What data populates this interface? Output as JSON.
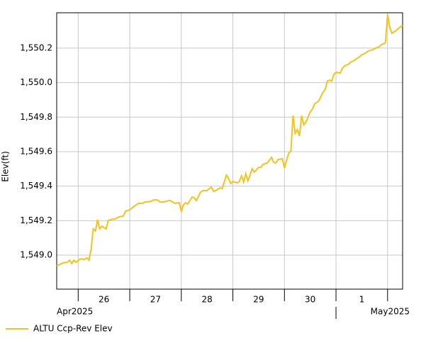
{
  "chart_data": {
    "type": "line",
    "y_label": "Elev(ft)",
    "ylim": [
      1548.803,
      1550.405
    ],
    "yticks": [
      {
        "value": 1549.0,
        "label": "1,549.0"
      },
      {
        "value": 1549.2,
        "label": "1,549.2"
      },
      {
        "value": 1549.4,
        "label": "1,549.4"
      },
      {
        "value": 1549.6,
        "label": "1,549.6"
      },
      {
        "value": 1549.8,
        "label": "1,549.8"
      },
      {
        "value": 1550.0,
        "label": "1,550.0"
      },
      {
        "value": 1550.2,
        "label": "1,550.2"
      }
    ],
    "xlim": [
      "2025-04-25T14:00",
      "2025-05-02T07:00"
    ],
    "xticks": [
      {
        "value": "2025-04-26T00:00",
        "label": "26"
      },
      {
        "value": "2025-04-27T00:00",
        "label": "27"
      },
      {
        "value": "2025-04-28T00:00",
        "label": "28"
      },
      {
        "value": "2025-04-29T00:00",
        "label": "29"
      },
      {
        "value": "2025-04-30T00:00",
        "label": "30"
      },
      {
        "value": "2025-05-01T00:00",
        "label": "1"
      },
      {
        "value": "2025-05-02T00:00",
        "label": null
      }
    ],
    "month_ticks": [
      {
        "value": "2025-04-01T00:00",
        "label": "Apr2025"
      },
      {
        "value": "2025-05-01T00:00",
        "label": "May2025"
      }
    ],
    "grid": true,
    "x": [
      "2025-04-25T14:00",
      "2025-04-25T17:00",
      "2025-04-25T19:00",
      "2025-04-25T20:00",
      "2025-04-25T21:00",
      "2025-04-25T22:00",
      "2025-04-25T23:00",
      "2025-04-26T01:00",
      "2025-04-26T03:00",
      "2025-04-26T04:00",
      "2025-04-26T05:00",
      "2025-04-26T06:00",
      "2025-04-26T07:00",
      "2025-04-26T08:00",
      "2025-04-26T09:00",
      "2025-04-26T10:00",
      "2025-04-26T11:00",
      "2025-04-26T13:00",
      "2025-04-26T14:00",
      "2025-04-26T16:00",
      "2025-04-26T17:00",
      "2025-04-26T19:00",
      "2025-04-26T21:00",
      "2025-04-26T22:00",
      "2025-04-27T00:00",
      "2025-04-27T02:00",
      "2025-04-27T04:00",
      "2025-04-27T06:00",
      "2025-04-27T07:00",
      "2025-04-27T10:00",
      "2025-04-27T11:00",
      "2025-04-27T13:00",
      "2025-04-27T14:00",
      "2025-04-27T16:00",
      "2025-04-27T18:00",
      "2025-04-27T19:00",
      "2025-04-27T21:00",
      "2025-04-27T23:00",
      "2025-04-28T00:00",
      "2025-04-28T01:00",
      "2025-04-28T02:00",
      "2025-04-28T03:00",
      "2025-04-28T05:00",
      "2025-04-28T06:00",
      "2025-04-28T07:00",
      "2025-04-28T09:00",
      "2025-04-28T10:00",
      "2025-04-28T12:00",
      "2025-04-28T13:00",
      "2025-04-28T14:00",
      "2025-04-28T15:00",
      "2025-04-28T16:00",
      "2025-04-28T18:00",
      "2025-04-28T19:00",
      "2025-04-28T21:00",
      "2025-04-28T22:00",
      "2025-04-28T23:00",
      "2025-04-29T00:00",
      "2025-04-29T02:00",
      "2025-04-29T03:00",
      "2025-04-29T04:00",
      "2025-04-29T05:00",
      "2025-04-29T06:00",
      "2025-04-29T07:00",
      "2025-04-29T08:00",
      "2025-04-29T09:00",
      "2025-04-29T10:00",
      "2025-04-29T12:00",
      "2025-04-29T13:00",
      "2025-04-29T14:00",
      "2025-04-29T16:00",
      "2025-04-29T18:00",
      "2025-04-29T19:00",
      "2025-04-29T20:00",
      "2025-04-29T21:00",
      "2025-04-29T23:00",
      "2025-04-30T00:00",
      "2025-04-30T01:00",
      "2025-04-30T02:00",
      "2025-04-30T03:00",
      "2025-04-30T04:00",
      "2025-04-30T05:00",
      "2025-04-30T06:00",
      "2025-04-30T07:00",
      "2025-04-30T08:00",
      "2025-04-30T09:00",
      "2025-04-30T10:00",
      "2025-04-30T11:00",
      "2025-04-30T12:00",
      "2025-04-30T13:00",
      "2025-04-30T14:00",
      "2025-04-30T16:00",
      "2025-04-30T17:00",
      "2025-04-30T18:00",
      "2025-04-30T19:00",
      "2025-04-30T20:00",
      "2025-04-30T21:00",
      "2025-04-30T22:00",
      "2025-04-30T23:00",
      "2025-05-01T00:00",
      "2025-05-01T02:00",
      "2025-05-01T03:00",
      "2025-05-01T04:00",
      "2025-05-01T06:00",
      "2025-05-01T07:00",
      "2025-05-01T08:00",
      "2025-05-01T10:00",
      "2025-05-01T11:00",
      "2025-05-01T12:00",
      "2025-05-01T13:00",
      "2025-05-01T15:00",
      "2025-05-01T16:00",
      "2025-05-01T17:00",
      "2025-05-01T19:00",
      "2025-05-01T20:00",
      "2025-05-01T21:00",
      "2025-05-01T22:00",
      "2025-05-01T23:00",
      "2025-05-02T00:00",
      "2025-05-02T01:00",
      "2025-05-02T02:00",
      "2025-05-02T03:00",
      "2025-05-02T04:00",
      "2025-05-02T05:00",
      "2025-05-02T07:00"
    ],
    "series": [
      {
        "name": "ALTU Ccp-Rev Elev",
        "color": "#f7c21b",
        "values": [
          1548.938,
          1548.955,
          1548.959,
          1548.971,
          1548.951,
          1548.971,
          1548.959,
          1548.979,
          1548.975,
          1548.984,
          1548.971,
          1549.033,
          1549.152,
          1549.14,
          1549.205,
          1549.152,
          1549.168,
          1549.152,
          1549.201,
          1549.209,
          1549.209,
          1549.222,
          1549.226,
          1549.255,
          1549.263,
          1549.283,
          1549.3,
          1549.3,
          1549.308,
          1549.312,
          1549.32,
          1549.32,
          1549.308,
          1549.308,
          1549.316,
          1549.316,
          1549.3,
          1549.304,
          1549.255,
          1549.292,
          1549.304,
          1549.296,
          1549.337,
          1549.333,
          1549.316,
          1549.366,
          1549.374,
          1549.374,
          1549.386,
          1549.394,
          1549.37,
          1549.374,
          1549.39,
          1549.386,
          1549.464,
          1549.444,
          1549.415,
          1549.427,
          1549.419,
          1549.427,
          1549.46,
          1549.423,
          1549.472,
          1549.431,
          1549.464,
          1549.501,
          1549.481,
          1549.509,
          1549.509,
          1549.526,
          1549.534,
          1549.567,
          1549.538,
          1549.534,
          1549.554,
          1549.559,
          1549.505,
          1549.55,
          1549.591,
          1549.604,
          1549.809,
          1549.706,
          1549.727,
          1549.69,
          1549.809,
          1549.756,
          1549.772,
          1549.801,
          1549.83,
          1549.846,
          1549.875,
          1549.895,
          1549.92,
          1549.945,
          1549.961,
          1550.01,
          1550.014,
          1550.01,
          1550.047,
          1550.06,
          1550.056,
          1550.084,
          1550.097,
          1550.109,
          1550.121,
          1550.125,
          1550.142,
          1550.15,
          1550.162,
          1550.166,
          1550.183,
          1550.187,
          1550.191,
          1550.203,
          1550.207,
          1550.22,
          1550.224,
          1550.232,
          1550.396,
          1550.322,
          1550.286,
          1550.294,
          1550.302,
          1550.314,
          1550.331
        ]
      }
    ]
  }
}
